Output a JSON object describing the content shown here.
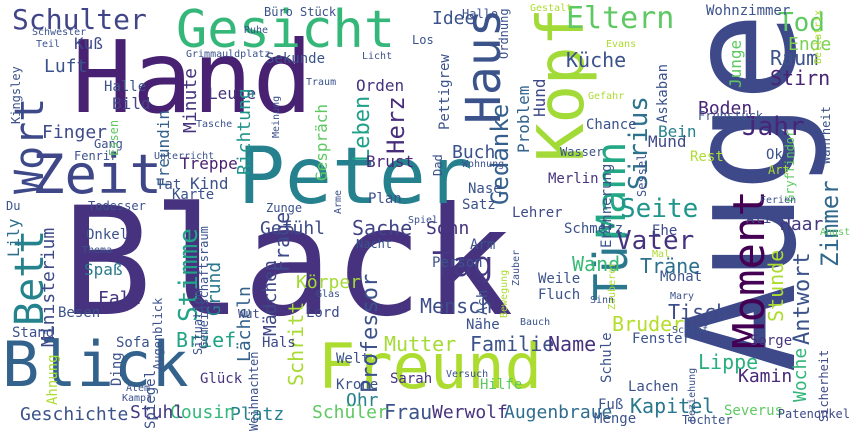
{
  "words": [
    {
      "text": "Black",
      "color": "#46327e"
    },
    {
      "text": "Auge",
      "color": "#3e4989"
    },
    {
      "text": "Hand",
      "color": "#482173"
    },
    {
      "text": "Peter",
      "color": "#26818e"
    },
    {
      "text": "Kopf",
      "color": "#a2da37"
    },
    {
      "text": "Freund",
      "color": "#addc30"
    },
    {
      "text": "Gesicht",
      "color": "#35b779"
    },
    {
      "text": "Blick",
      "color": "#33638d"
    },
    {
      "text": "Zeit",
      "color": "#3f4788"
    },
    {
      "text": "Haus",
      "color": "#3b528b"
    },
    {
      "text": "Tür",
      "color": "#2a788e"
    },
    {
      "text": "Moment",
      "color": "#440154"
    },
    {
      "text": "Mann",
      "color": "#22a884"
    },
    {
      "text": "Wort",
      "color": "#3e4989"
    },
    {
      "text": "Bett",
      "color": "#25838e"
    },
    {
      "text": "Schulter",
      "color": "#414487"
    },
    {
      "text": "Eltern",
      "color": "#5ec962"
    },
    {
      "text": "Tag",
      "color": "#453781"
    },
    {
      "text": "Vater",
      "color": "#46337e"
    },
    {
      "text": "Seite",
      "color": "#1f958b"
    },
    {
      "text": "Jahr",
      "color": "#482677"
    },
    {
      "text": "Sirius",
      "color": "#2c728e"
    },
    {
      "text": "Zimmer",
      "color": "#31688e"
    },
    {
      "text": "Gedanke",
      "color": "#355f8d"
    },
    {
      "text": "Stimme",
      "color": "#20a386"
    },
    {
      "text": "Frage",
      "color": "#3e4989"
    },
    {
      "text": "Herz",
      "color": "#472d7b"
    },
    {
      "text": "Leben",
      "color": "#1fa088"
    },
    {
      "text": "Professor",
      "color": "#3b528b"
    },
    {
      "text": "Mensch",
      "color": "#3d4d8a"
    },
    {
      "text": "Sache",
      "color": "#414487"
    },
    {
      "text": "Wand",
      "color": "#3aba76"
    },
    {
      "text": "Tod",
      "color": "#5ec962"
    },
    {
      "text": "Raum",
      "color": "#3b528b"
    },
    {
      "text": "Stirn",
      "color": "#482475"
    },
    {
      "text": "Ende",
      "color": "#7ad151"
    },
    {
      "text": "Antwort",
      "color": "#3b528b"
    },
    {
      "text": "Stunde",
      "color": "#addc30"
    },
    {
      "text": "Woche",
      "color": "#31b57b"
    },
    {
      "text": "Haar",
      "color": "#453781"
    },
    {
      "text": "Träne",
      "color": "#2d708e"
    },
    {
      "text": "Tisch",
      "color": "#3d4d8a"
    },
    {
      "text": "Bruder",
      "color": "#b5de2b"
    },
    {
      "text": "Lippe",
      "color": "#2ab07f"
    },
    {
      "text": "Kapitel",
      "color": "#2a788e"
    },
    {
      "text": "Kamin",
      "color": "#482878"
    },
    {
      "text": "Mutter",
      "color": "#a5db36"
    },
    {
      "text": "Familie",
      "color": "#3b528b"
    },
    {
      "text": "Name",
      "color": "#46337e"
    },
    {
      "text": "Frau",
      "color": "#3b528b"
    },
    {
      "text": "Ohr",
      "color": "#26828e"
    },
    {
      "text": "Werwolf",
      "color": "#46337e"
    },
    {
      "text": "Augenbraue",
      "color": "#2f6c8e"
    },
    {
      "text": "Schüler",
      "color": "#5ec962"
    },
    {
      "text": "Platz",
      "color": "#26828e"
    },
    {
      "text": "Cousin",
      "color": "#35b779"
    },
    {
      "text": "Stuhl",
      "color": "#443983"
    },
    {
      "text": "Geschichte",
      "color": "#3b528b"
    },
    {
      "text": "Schritt",
      "color": "#a8db34"
    },
    {
      "text": "Brief",
      "color": "#20a386"
    },
    {
      "text": "Lächeln",
      "color": "#33638d"
    },
    {
      "text": "Grund",
      "color": "#2a788e"
    },
    {
      "text": "Mädchen",
      "color": "#3f4788"
    },
    {
      "text": "Körper",
      "color": "#a2da37"
    },
    {
      "text": "Gefühl",
      "color": "#3e4989"
    },
    {
      "text": "Sohn",
      "color": "#46337e"
    },
    {
      "text": "Fall",
      "color": "#46337e"
    },
    {
      "text": "Ministerium",
      "color": "#3e4989"
    },
    {
      "text": "Spaß",
      "color": "#2a788e"
    },
    {
      "text": "Lily",
      "color": "#2d708e"
    },
    {
      "text": "Finger",
      "color": "#3e4989"
    },
    {
      "text": "Luft",
      "color": "#3b528b"
    },
    {
      "text": "Kuß",
      "color": "#3e4989"
    },
    {
      "text": "Halle",
      "color": "#3b528b"
    },
    {
      "text": "Bild",
      "color": "#414487"
    },
    {
      "text": "Minute",
      "color": "#46337e"
    },
    {
      "text": "Leute",
      "color": "#46337e"
    },
    {
      "text": "Richtung",
      "color": "#1f958b"
    },
    {
      "text": "Kind",
      "color": "#3b528b"
    },
    {
      "text": "Treppe",
      "color": "#481f70"
    },
    {
      "text": "Freundin",
      "color": "#355f8d"
    },
    {
      "text": "Idee",
      "color": "#3b528b"
    },
    {
      "text": "Orden",
      "color": "#46337e"
    },
    {
      "text": "Buch",
      "color": "#3b528b"
    },
    {
      "text": "Brust",
      "color": "#482878"
    },
    {
      "text": "Gespräch",
      "color": "#5ec962"
    },
    {
      "text": "Problem",
      "color": "#33638d"
    },
    {
      "text": "Hund",
      "color": "#3e4989"
    },
    {
      "text": "Küche",
      "color": "#3b528b"
    },
    {
      "text": "Boden",
      "color": "#482475"
    },
    {
      "text": "Bein",
      "color": "#26828e"
    },
    {
      "text": "Mund",
      "color": "#3e4989"
    },
    {
      "text": "Junge",
      "color": "#5ec962"
    },
    {
      "text": "Nase",
      "color": "#3b528b"
    },
    {
      "text": "Satz",
      "color": "#3b528b"
    },
    {
      "text": "Plan",
      "color": "#3b528b"
    },
    {
      "text": "Arm",
      "color": "#3b528b"
    },
    {
      "text": "Merlin",
      "color": "#46337e"
    },
    {
      "text": "Lehrer",
      "color": "#3e4989"
    },
    {
      "text": "Erinnerung",
      "color": "#3b528b"
    },
    {
      "text": "Schmerz",
      "color": "#3b528b"
    },
    {
      "text": "Ehe",
      "color": "#3e4989"
    },
    {
      "text": "Person",
      "color": "#3b528b"
    },
    {
      "text": "Weile",
      "color": "#3b528b"
    },
    {
      "text": "Fluch",
      "color": "#3b528b"
    },
    {
      "text": "Schule",
      "color": "#3b528b"
    },
    {
      "text": "Nähe",
      "color": "#3b528b"
    },
    {
      "text": "Hals",
      "color": "#3e4989"
    },
    {
      "text": "Glück",
      "color": "#46337e"
    },
    {
      "text": "Sarah",
      "color": "#46337e"
    },
    {
      "text": "Hilfe",
      "color": "#5ec962"
    },
    {
      "text": "Lachen",
      "color": "#3b528b"
    },
    {
      "text": "Welt",
      "color": "#3b528b"
    },
    {
      "text": "Krone",
      "color": "#3b528b"
    },
    {
      "text": "Lord",
      "color": "#3e4989"
    },
    {
      "text": "Fenster",
      "color": "#3b528b"
    },
    {
      "text": "Sorge",
      "color": "#46337e"
    },
    {
      "text": "Monat",
      "color": "#3b528b"
    },
    {
      "text": "Alice",
      "color": "#3e4989"
    },
    {
      "text": "Severus",
      "color": "#5ec962"
    },
    {
      "text": "Fuß",
      "color": "#3b528b"
    },
    {
      "text": "Menge",
      "color": "#3b528b"
    },
    {
      "text": "Tochter",
      "color": "#3b528b"
    },
    {
      "text": "Patenonkel",
      "color": "#3e4989"
    },
    {
      "text": "Sicherheit",
      "color": "#3e4989"
    },
    {
      "text": "Stand",
      "color": "#3b528b"
    },
    {
      "text": "Besen",
      "color": "#3b528b"
    },
    {
      "text": "Sofa",
      "color": "#3b528b"
    },
    {
      "text": "Ahnung",
      "color": "#addc30"
    },
    {
      "text": "Ding",
      "color": "#3b528b"
    },
    {
      "text": "Spiegel",
      "color": "#3b528b"
    },
    {
      "text": "Weihnachten",
      "color": "#3b528b"
    },
    {
      "text": "Wut",
      "color": "#3e4989"
    },
    {
      "text": "Augenblick",
      "color": "#3b528b"
    },
    {
      "text": "Situation",
      "color": "#3b528b"
    },
    {
      "text": "Onkel",
      "color": "#3b528b"
    },
    {
      "text": "Thema",
      "color": "#3b528b"
    },
    {
      "text": "Gemeinschaftsraum",
      "color": "#3b528b"
    },
    {
      "text": "Karte",
      "color": "#3b528b"
    },
    {
      "text": "Todesser",
      "color": "#3b528b"
    },
    {
      "text": "Zunge",
      "color": "#3b528b"
    },
    {
      "text": "Nacht",
      "color": "#3b528b"
    },
    {
      "text": "Tat",
      "color": "#3b528b"
    },
    {
      "text": "Fenrir",
      "color": "#3b528b"
    },
    {
      "text": "Gang",
      "color": "#3b528b"
    },
    {
      "text": "Essen",
      "color": "#5ec962"
    },
    {
      "text": "Kingsley",
      "color": "#3b528b"
    },
    {
      "text": "Du",
      "color": "#3b528b"
    },
    {
      "text": "Schwester",
      "color": "#3b528b"
    },
    {
      "text": "Teil",
      "color": "#3b528b"
    },
    {
      "text": "Büro",
      "color": "#3b528b"
    },
    {
      "text": "Stück",
      "color": "#3b528b"
    },
    {
      "text": "Ruhe",
      "color": "#3b528b"
    },
    {
      "text": "Grimmauldplatz",
      "color": "#3b528b"
    },
    {
      "text": "Sekunde",
      "color": "#3b528b"
    },
    {
      "text": "Licht",
      "color": "#3b528b"
    },
    {
      "text": "Traum",
      "color": "#3b528b"
    },
    {
      "text": "Meinung",
      "color": "#3b528b"
    },
    {
      "text": "Tasche",
      "color": "#3b528b"
    },
    {
      "text": "Unterricht",
      "color": "#3b528b"
    },
    {
      "text": "Wohnung",
      "color": "#3b528b"
    },
    {
      "text": "Hallo",
      "color": "#3b528b"
    },
    {
      "text": "Los",
      "color": "#3b528b"
    },
    {
      "text": "Pettigrew",
      "color": "#3b528b"
    },
    {
      "text": "Ordnung",
      "color": "#3b528b"
    },
    {
      "text": "Gestalt",
      "color": "#addc30"
    },
    {
      "text": "Wohnzimmer",
      "color": "#3b528b"
    },
    {
      "text": "Evans",
      "color": "#addc30"
    },
    {
      "text": "Askaban",
      "color": "#3b528b"
    },
    {
      "text": "Gefahr",
      "color": "#addc30"
    },
    {
      "text": "Chance",
      "color": "#3b528b"
    },
    {
      "text": "Frühstück",
      "color": "#3b528b"
    },
    {
      "text": "Wasser",
      "color": "#3b528b"
    },
    {
      "text": "Sessel",
      "color": "#3b528b"
    },
    {
      "text": "Rest",
      "color": "#addc30"
    },
    {
      "text": "Ok",
      "color": "#3b528b"
    },
    {
      "text": "Wahrheit",
      "color": "#3b528b"
    },
    {
      "text": "Gryffindor",
      "color": "#5ec962"
    },
    {
      "text": "Art",
      "color": "#addc30"
    },
    {
      "text": "Ferien",
      "color": "#3b528b"
    },
    {
      "text": "Angst",
      "color": "#5ec962"
    },
    {
      "text": "Bellatrix",
      "color": "#addc30"
    },
    {
      "text": "Dad",
      "color": "#3b528b"
    },
    {
      "text": "Arme",
      "color": "#3b528b"
    },
    {
      "text": "Spiel",
      "color": "#3b528b"
    },
    {
      "text": "Zauber",
      "color": "#3b528b"
    },
    {
      "text": "Zauberer",
      "color": "#addc30"
    },
    {
      "text": "Mal",
      "color": "#addc30"
    },
    {
      "text": "Bewegung",
      "color": "#addc30"
    },
    {
      "text": "Sinn",
      "color": "#3b528b"
    },
    {
      "text": "Mary",
      "color": "#3b528b"
    },
    {
      "text": "Bauch",
      "color": "#3b528b"
    },
    {
      "text": "Schlaf",
      "color": "#3b528b"
    },
    {
      "text": "Glas",
      "color": "#3b528b"
    },
    {
      "text": "Atem",
      "color": "#3b528b"
    },
    {
      "text": "Kampf",
      "color": "#3b528b"
    },
    {
      "text": "Versuch",
      "color": "#3b528b"
    },
    {
      "text": "Beziehung",
      "color": "#3b528b"
    },
    {
      "text": "Ach",
      "color": "#3b528b"
    }
  ]
}
